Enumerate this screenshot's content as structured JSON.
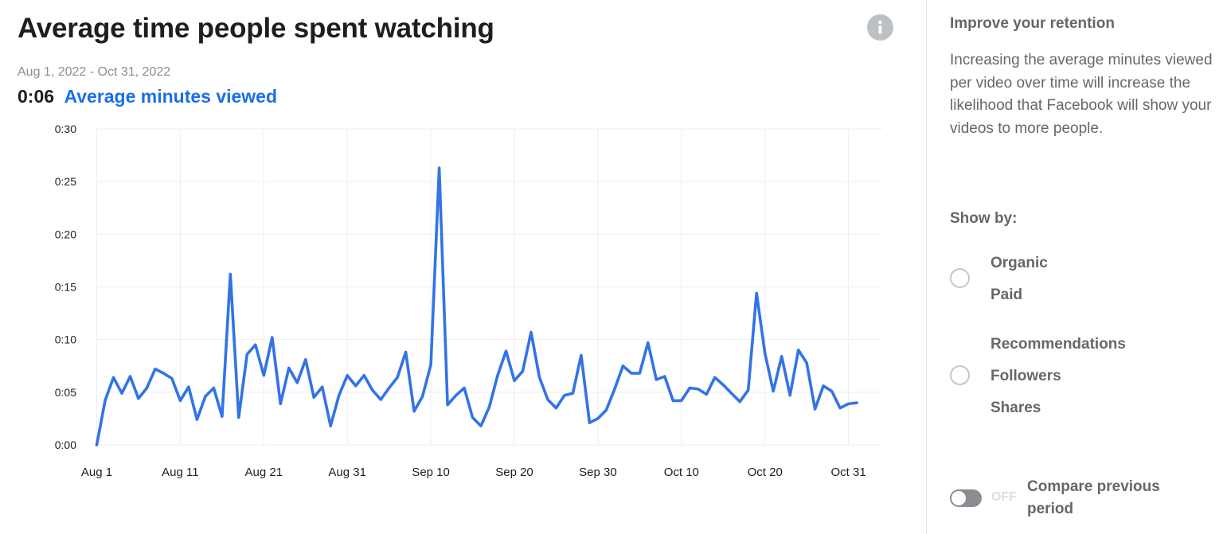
{
  "header": {
    "title": "Average time people spent watching",
    "date_range": "Aug 1, 2022 - Oct 31, 2022",
    "metric_value": "0:06",
    "metric_label": "Average minutes viewed",
    "info_icon": "info-icon"
  },
  "colors": {
    "line": "#3373e6",
    "accent": "#1b6ee8",
    "grid": "#eceef1"
  },
  "chart_data": {
    "type": "line",
    "title": "Average time people spent watching",
    "xlabel": "",
    "ylabel": "",
    "ylim": [
      0,
      30
    ],
    "y_unit": "seconds",
    "y_ticks": [
      0,
      5,
      10,
      15,
      20,
      25,
      30
    ],
    "y_tick_labels": [
      "0:00",
      "0:05",
      "0:10",
      "0:15",
      "0:20",
      "0:25",
      "0:30"
    ],
    "x_ticks": [
      0,
      10,
      20,
      30,
      40,
      50,
      60,
      70,
      80,
      90
    ],
    "x_tick_labels": [
      "Aug 1",
      "Aug 11",
      "Aug 21",
      "Aug 31",
      "Sep 10",
      "Sep 20",
      "Sep 30",
      "Oct 10",
      "Oct 20",
      "Oct 31"
    ],
    "grid": true,
    "series": [
      {
        "name": "Average minutes viewed",
        "values": [
          0,
          4.2,
          6.4,
          4.9,
          6.5,
          4.4,
          5.4,
          7.2,
          6.8,
          6.3,
          4.2,
          5.5,
          2.4,
          4.6,
          5.4,
          2.7,
          16.2,
          2.6,
          8.6,
          9.5,
          6.6,
          10.2,
          3.9,
          7.3,
          5.9,
          8.1,
          4.5,
          5.5,
          1.8,
          4.7,
          6.6,
          5.6,
          6.6,
          5.2,
          4.3,
          5.4,
          6.4,
          8.8,
          3.2,
          4.6,
          7.6,
          26.3,
          3.8,
          4.7,
          5.4,
          2.6,
          1.8,
          3.6,
          6.6,
          8.9,
          6.1,
          7,
          10.7,
          6.4,
          4.3,
          3.5,
          4.7,
          4.9,
          8.5,
          2.1,
          2.5,
          3.3,
          5.3,
          7.5,
          6.8,
          6.8,
          9.7,
          6.2,
          6.5,
          4.2,
          4.2,
          5.4,
          5.3,
          4.8,
          6.4,
          5.7,
          4.9,
          4.1,
          5.2,
          14.4,
          8.7,
          5.1,
          8.4,
          4.7,
          9,
          7.8,
          3.4,
          5.6,
          5.1,
          3.5,
          3.9,
          4
        ]
      }
    ]
  },
  "sidebar": {
    "improve_title": "Improve your retention",
    "improve_text": "Increasing the average minutes viewed per video over time will increase the likelihood that Facebook will show your videos to more people.",
    "show_by_label": "Show by:",
    "groups": [
      {
        "options": [
          "Organic",
          "Paid"
        ]
      },
      {
        "options": [
          "Recommendations",
          "Followers",
          "Shares"
        ]
      }
    ],
    "toggle_state": "OFF",
    "compare_label": "Compare previous period"
  }
}
